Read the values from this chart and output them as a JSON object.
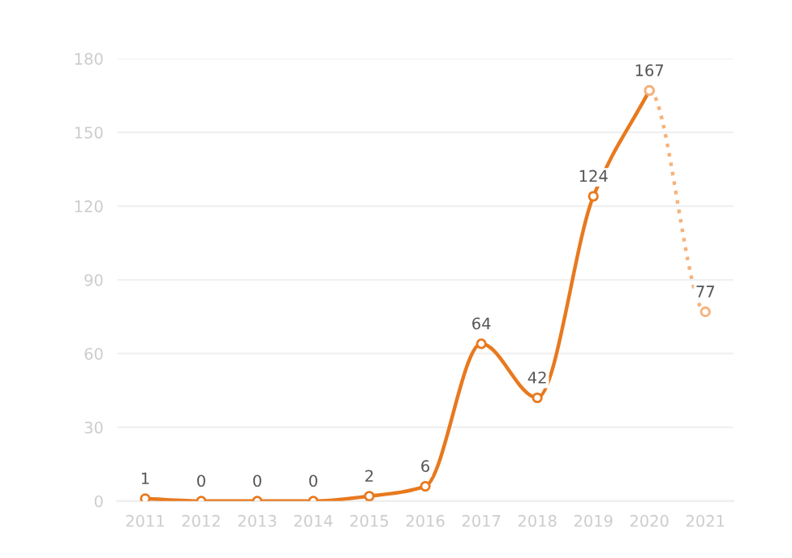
{
  "chart_data": {
    "type": "line",
    "categories": [
      "2011",
      "2012",
      "2013",
      "2014",
      "2015",
      "2016",
      "2017",
      "2018",
      "2019",
      "2020",
      "2021"
    ],
    "series": [
      {
        "color": "#e8791e",
        "line_style": "solid",
        "values": [
          1,
          0,
          0,
          0,
          2,
          6,
          64,
          42,
          124,
          167,
          null
        ],
        "value_labels": [
          "1",
          "0",
          "0",
          "0",
          "2",
          "6",
          "64",
          "42",
          "124",
          "167",
          null
        ]
      },
      {
        "color": "#f5b27a",
        "line_style": "dotted",
        "values": [
          null,
          null,
          null,
          null,
          null,
          null,
          null,
          null,
          null,
          167,
          77
        ],
        "value_labels": [
          null,
          null,
          null,
          null,
          null,
          null,
          null,
          null,
          null,
          null,
          "77"
        ]
      }
    ],
    "ylim": [
      0,
      180
    ],
    "yticks": [
      0,
      30,
      60,
      90,
      120,
      150,
      180
    ],
    "grid": "y",
    "marker": "circle",
    "legend": false
  }
}
